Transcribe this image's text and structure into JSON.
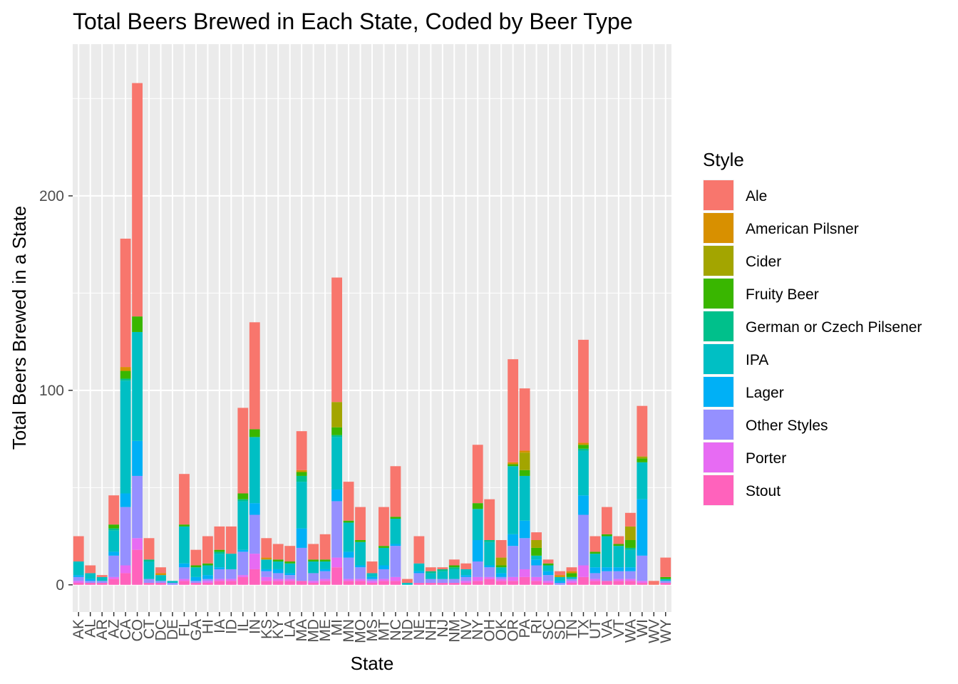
{
  "chart_data": {
    "type": "bar",
    "stacked": true,
    "title": "Total Beers Brewed in Each State, Coded by Beer Type",
    "xlabel": "State",
    "ylabel": "Total Beers Brewed in a State",
    "ylim": [
      -14,
      278
    ],
    "yticks": [
      0,
      100,
      200
    ],
    "grid": true,
    "legend": {
      "title": "Style",
      "position": "right"
    },
    "categories": [
      "AK",
      "AL",
      "AR",
      "AZ",
      "CA",
      "CO",
      "CT",
      "DC",
      "DE",
      "FL",
      "GA",
      "HI",
      "IA",
      "ID",
      "IL",
      "IN",
      "KS",
      "KY",
      "LA",
      "MA",
      "MD",
      "ME",
      "MI",
      "MN",
      "MO",
      "MS",
      "MT",
      "NC",
      "ND",
      "NE",
      "NH",
      "NJ",
      "NM",
      "NV",
      "NY",
      "OH",
      "OK",
      "OR",
      "PA",
      "RI",
      "SC",
      "SD",
      "TN",
      "TX",
      "UT",
      "VA",
      "VT",
      "WA",
      "WI",
      "WV",
      "WY"
    ],
    "series": [
      {
        "name": "Stout",
        "color": "#FF62BC",
        "values": [
          1,
          1,
          1,
          3,
          6,
          18,
          1,
          1,
          0,
          2,
          1,
          1,
          2,
          2,
          4,
          8,
          2,
          2,
          2,
          2,
          1,
          2,
          9,
          2,
          2,
          1,
          2,
          2,
          0,
          1,
          1,
          1,
          1,
          1,
          2,
          3,
          2,
          2,
          4,
          2,
          1,
          0,
          1,
          4,
          2,
          2,
          2,
          2,
          1,
          0,
          1
        ]
      },
      {
        "name": "Porter",
        "color": "#E76BF3",
        "values": [
          1,
          0,
          0,
          1,
          4,
          6,
          0,
          0,
          0,
          1,
          0,
          1,
          1,
          1,
          1,
          8,
          2,
          1,
          1,
          0,
          1,
          1,
          5,
          1,
          1,
          1,
          1,
          2,
          0,
          0,
          0,
          0,
          0,
          1,
          2,
          1,
          1,
          2,
          4,
          2,
          1,
          0,
          1,
          6,
          1,
          0,
          1,
          1,
          1,
          0,
          0
        ]
      },
      {
        "name": "Other Styles",
        "color": "#9590FF",
        "values": [
          2,
          1,
          1,
          11,
          30,
          32,
          2,
          1,
          1,
          6,
          1,
          1,
          5,
          5,
          12,
          20,
          3,
          3,
          2,
          17,
          4,
          4,
          29,
          11,
          6,
          1,
          5,
          16,
          0,
          5,
          2,
          2,
          2,
          2,
          8,
          5,
          1,
          16,
          16,
          6,
          3,
          1,
          1,
          26,
          3,
          5,
          4,
          4,
          13,
          0,
          1
        ]
      },
      {
        "name": "Lager",
        "color": "#00B0F6",
        "values": [
          1,
          1,
          0,
          2,
          7,
          18,
          0,
          0,
          0,
          2,
          2,
          2,
          1,
          0,
          1,
          6,
          1,
          2,
          1,
          10,
          0,
          1,
          6,
          3,
          1,
          1,
          2,
          1,
          0,
          1,
          0,
          0,
          0,
          1,
          11,
          1,
          2,
          6,
          9,
          3,
          2,
          1,
          0,
          10,
          3,
          2,
          2,
          2,
          29,
          0,
          0
        ]
      },
      {
        "name": "IPA",
        "color": "#00BFC4",
        "values": [
          7,
          3,
          2,
          11,
          58,
          56,
          9,
          3,
          1,
          19,
          5,
          5,
          7,
          8,
          25,
          34,
          5,
          4,
          5,
          24,
          6,
          4,
          27,
          15,
          12,
          2,
          9,
          13,
          1,
          4,
          3,
          4,
          5,
          3,
          16,
          12,
          3,
          35,
          23,
          2,
          3,
          2,
          1,
          23,
          7,
          16,
          11,
          9,
          19,
          0,
          1
        ]
      },
      {
        "name": "German or Czech Pilsener",
        "color": "#00C08B",
        "values": [
          0,
          0,
          0,
          1,
          1,
          0,
          1,
          0,
          0,
          0,
          0,
          0,
          1,
          0,
          1,
          0,
          0,
          0,
          0,
          3,
          0,
          0,
          1,
          0,
          0,
          0,
          0,
          0,
          0,
          0,
          1,
          1,
          1,
          0,
          0,
          1,
          0,
          0,
          0,
          0,
          0,
          0,
          0,
          1,
          0,
          0,
          0,
          1,
          0,
          0,
          0
        ]
      },
      {
        "name": "Fruity Beer",
        "color": "#39B600",
        "values": [
          0,
          0,
          0,
          2,
          4,
          8,
          0,
          0,
          0,
          1,
          1,
          1,
          1,
          0,
          3,
          4,
          0,
          1,
          1,
          2,
          1,
          1,
          4,
          1,
          1,
          0,
          1,
          1,
          0,
          0,
          0,
          0,
          1,
          0,
          3,
          0,
          1,
          1,
          3,
          4,
          1,
          0,
          2,
          2,
          1,
          1,
          1,
          4,
          2,
          0,
          1
        ]
      },
      {
        "name": "Cider",
        "color": "#A3A500",
        "values": [
          0,
          0,
          0,
          0,
          0,
          0,
          0,
          0,
          0,
          0,
          0,
          0,
          0,
          0,
          0,
          0,
          0,
          0,
          0,
          0,
          0,
          0,
          13,
          0,
          0,
          0,
          0,
          0,
          0,
          0,
          0,
          0,
          0,
          0,
          0,
          0,
          4,
          0,
          9,
          4,
          0,
          0,
          0,
          0,
          0,
          0,
          0,
          7,
          1,
          0,
          0
        ]
      },
      {
        "name": "American Pilsner",
        "color": "#D89000",
        "values": [
          0,
          0,
          0,
          0,
          2,
          0,
          0,
          1,
          0,
          0,
          0,
          0,
          0,
          0,
          0,
          0,
          1,
          0,
          0,
          1,
          0,
          0,
          0,
          0,
          0,
          0,
          0,
          0,
          0,
          0,
          0,
          0,
          0,
          0,
          0,
          0,
          0,
          1,
          1,
          0,
          0,
          1,
          1,
          1,
          0,
          0,
          0,
          0,
          0,
          0,
          0
        ]
      },
      {
        "name": "Ale",
        "color": "#F8766D",
        "values": [
          13,
          4,
          1,
          15,
          66,
          120,
          11,
          3,
          0,
          26,
          8,
          14,
          12,
          14,
          44,
          55,
          10,
          8,
          8,
          20,
          8,
          13,
          64,
          20,
          17,
          6,
          20,
          26,
          2,
          14,
          2,
          1,
          3,
          3,
          30,
          21,
          9,
          53,
          32,
          4,
          2,
          2,
          2,
          53,
          8,
          14,
          4,
          7,
          26,
          2,
          10
        ]
      }
    ]
  }
}
